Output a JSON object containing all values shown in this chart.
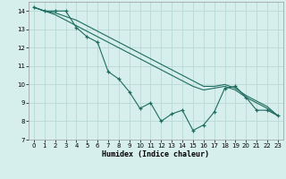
{
  "xlabel": "Humidex (Indice chaleur)",
  "xlim": [
    -0.5,
    23.5
  ],
  "ylim": [
    7,
    14.5
  ],
  "yticks": [
    7,
    8,
    9,
    10,
    11,
    12,
    13,
    14
  ],
  "xticks": [
    0,
    1,
    2,
    3,
    4,
    5,
    6,
    7,
    8,
    9,
    10,
    11,
    12,
    13,
    14,
    15,
    16,
    17,
    18,
    19,
    20,
    21,
    22,
    23
  ],
  "bg_color": "#d7efec",
  "grid_color": "#b8d8d4",
  "line_color": "#1d6b5f",
  "series1_x": [
    0,
    1,
    2,
    3,
    4,
    5,
    6,
    7,
    8,
    9,
    10,
    11,
    12,
    13,
    14,
    15,
    16,
    17,
    18,
    19,
    20,
    21,
    22,
    23
  ],
  "series1_y": [
    14.2,
    14.0,
    14.0,
    14.0,
    13.1,
    12.6,
    12.3,
    10.7,
    10.3,
    9.6,
    8.7,
    9.0,
    8.0,
    8.4,
    8.6,
    7.5,
    7.8,
    8.5,
    9.8,
    9.9,
    9.3,
    8.6,
    8.6,
    8.3
  ],
  "series2_x": [
    0,
    1,
    2,
    3,
    4,
    5,
    6,
    7,
    8,
    9,
    10,
    11,
    12,
    13,
    14,
    15,
    16,
    17,
    18,
    19,
    20,
    21,
    22,
    23
  ],
  "series2_y": [
    14.2,
    14.0,
    13.8,
    13.5,
    13.2,
    12.9,
    12.6,
    12.3,
    12.0,
    11.7,
    11.4,
    11.1,
    10.8,
    10.5,
    10.2,
    9.9,
    9.7,
    9.8,
    9.9,
    9.7,
    9.3,
    9.0,
    8.7,
    8.3
  ],
  "series3_x": [
    0,
    1,
    2,
    3,
    4,
    5,
    6,
    7,
    8,
    9,
    10,
    11,
    12,
    13,
    14,
    15,
    16,
    17,
    18,
    19,
    20,
    21,
    22,
    23
  ],
  "series3_y": [
    14.2,
    14.0,
    13.9,
    13.7,
    13.5,
    13.2,
    12.9,
    12.6,
    12.3,
    12.0,
    11.7,
    11.4,
    11.1,
    10.8,
    10.5,
    10.2,
    9.9,
    9.9,
    10.0,
    9.8,
    9.4,
    9.1,
    8.8,
    8.3
  ]
}
